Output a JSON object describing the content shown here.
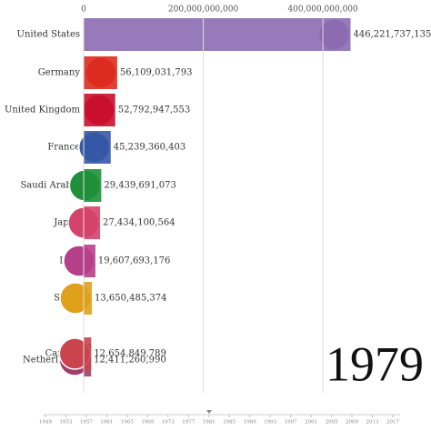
{
  "chart_data": {
    "type": "bar",
    "orientation": "horizontal",
    "categories": [
      "United States",
      "Germany",
      "United Kingdom",
      "France",
      "Saudi Arabia",
      "Japan",
      "Italy",
      "Spain",
      "Canada",
      "Netherlands"
    ],
    "values": [
      446221737135,
      56109031793,
      52792947553,
      45239360403,
      29439691073,
      27434100564,
      19607693176,
      13650485374,
      12654849789,
      12411260990
    ],
    "value_labels": [
      "446,221,737,135",
      "56,109,031,793",
      "52,792,947,553",
      "45,239,360,403",
      "29,439,691,073",
      "27,434,100,564",
      "19,607,693,176",
      "13,650,485,374",
      "12,654,849,789",
      "12,411,260,990"
    ],
    "colors": [
      "#8c6bb1",
      "#dd2c1f",
      "#c8102e",
      "#3658a6",
      "#1f8f3a",
      "#d5426a",
      "#b63f8a",
      "#e0a019",
      "#c9444c",
      "#a33b6c"
    ],
    "xlim": [
      0,
      450000000000
    ],
    "xticks": [
      0,
      {
        "value": 200000000000,
        "label": "200,000,000,000"
      },
      {
        "value": 400000000000,
        "label": "400,000,000,000"
      }
    ],
    "grid": true,
    "year": "1979",
    "timeline_ticks": [
      1949,
      1953,
      1957,
      1961,
      1965,
      1969,
      1973,
      1977,
      1981,
      1985,
      1989,
      1993,
      1997,
      2001,
      2005,
      2009,
      2013,
      2017
    ]
  }
}
